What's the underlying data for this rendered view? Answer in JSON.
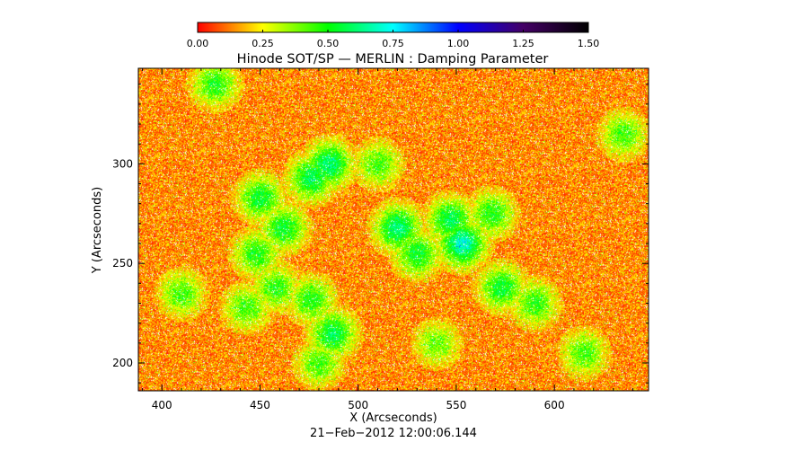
{
  "chart_data": {
    "type": "heatmap",
    "title": "Hinode SOT/SP — MERLIN : Damping Parameter",
    "xlabel": "X (Arcseconds)",
    "ylabel": "Y (Arcseconds)",
    "footer": "21−Feb−2012 12:00:06.144",
    "xlim": [
      388,
      648
    ],
    "ylim": [
      186,
      348
    ],
    "x_ticks": [
      "400",
      "450",
      "500",
      "550",
      "600"
    ],
    "y_ticks": [
      "200",
      "250",
      "300"
    ],
    "colorbar": {
      "range": [
        0,
        1.5
      ],
      "tick_labels": [
        "0.00",
        "0.25",
        "0.50",
        "0.75",
        "1.00",
        "1.25",
        "1.50"
      ],
      "colors": [
        "#ff0000",
        "#ffff00",
        "#00ff00",
        "#00ffff",
        "#0000ff",
        "#440066",
        "#000000"
      ],
      "stops": [
        0,
        0.25,
        0.5,
        0.75,
        1.0,
        1.25,
        1.5
      ]
    },
    "typical_values": {
      "background_mean": 0.13,
      "network_mean": 0.45,
      "dropouts": "white speckles (no data)"
    },
    "enhanced_regions": [
      {
        "x": 485,
        "y": 300,
        "level": 0.55
      },
      {
        "x": 476,
        "y": 293,
        "level": 0.5
      },
      {
        "x": 450,
        "y": 283,
        "level": 0.45
      },
      {
        "x": 462,
        "y": 268,
        "level": 0.45
      },
      {
        "x": 448,
        "y": 255,
        "level": 0.4
      },
      {
        "x": 458,
        "y": 238,
        "level": 0.38
      },
      {
        "x": 476,
        "y": 232,
        "level": 0.4
      },
      {
        "x": 487,
        "y": 215,
        "level": 0.5
      },
      {
        "x": 480,
        "y": 200,
        "level": 0.35
      },
      {
        "x": 520,
        "y": 268,
        "level": 0.55
      },
      {
        "x": 530,
        "y": 255,
        "level": 0.45
      },
      {
        "x": 553,
        "y": 260,
        "level": 0.65
      },
      {
        "x": 547,
        "y": 272,
        "level": 0.5
      },
      {
        "x": 568,
        "y": 275,
        "level": 0.4
      },
      {
        "x": 573,
        "y": 238,
        "level": 0.45
      },
      {
        "x": 590,
        "y": 230,
        "level": 0.38
      },
      {
        "x": 510,
        "y": 300,
        "level": 0.35
      },
      {
        "x": 410,
        "y": 235,
        "level": 0.35
      },
      {
        "x": 427,
        "y": 340,
        "level": 0.4
      },
      {
        "x": 635,
        "y": 315,
        "level": 0.35
      },
      {
        "x": 615,
        "y": 205,
        "level": 0.35
      },
      {
        "x": 540,
        "y": 210,
        "level": 0.3
      },
      {
        "x": 443,
        "y": 228,
        "level": 0.35
      }
    ]
  }
}
